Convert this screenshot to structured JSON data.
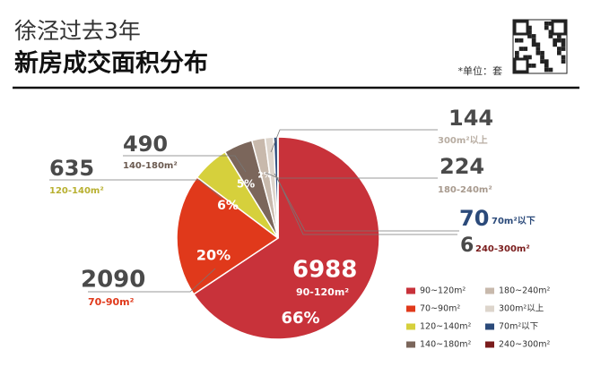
{
  "chart_data": {
    "type": "pie",
    "title": "徐泾过去3年",
    "subtitle": "新房成交面积分布",
    "unit": "*单位：套",
    "categories": [
      "90~120m²",
      "70~90m²",
      "120~140m²",
      "140~180m²",
      "180~240m²",
      "300m²以上",
      "70m²以下",
      "240~300m²"
    ],
    "callout_labels": [
      "90-120m²",
      "70-90m²",
      "120-140m²",
      "140-180m²",
      "180-240m²",
      "300m²以上",
      "70m²以下",
      "240-300m²"
    ],
    "values": [
      6988,
      2090,
      635,
      490,
      224,
      144,
      70,
      6
    ],
    "percent_labels": [
      "66%",
      "20%",
      "6%",
      "5%",
      "2%",
      null,
      null,
      null
    ],
    "colors": [
      "#c8323a",
      "#e0391b",
      "#d6d03c",
      "#7b665b",
      "#c8b9ac",
      "#ddd5cc",
      "#2b4a7a",
      "#7a1c1c"
    ]
  }
}
